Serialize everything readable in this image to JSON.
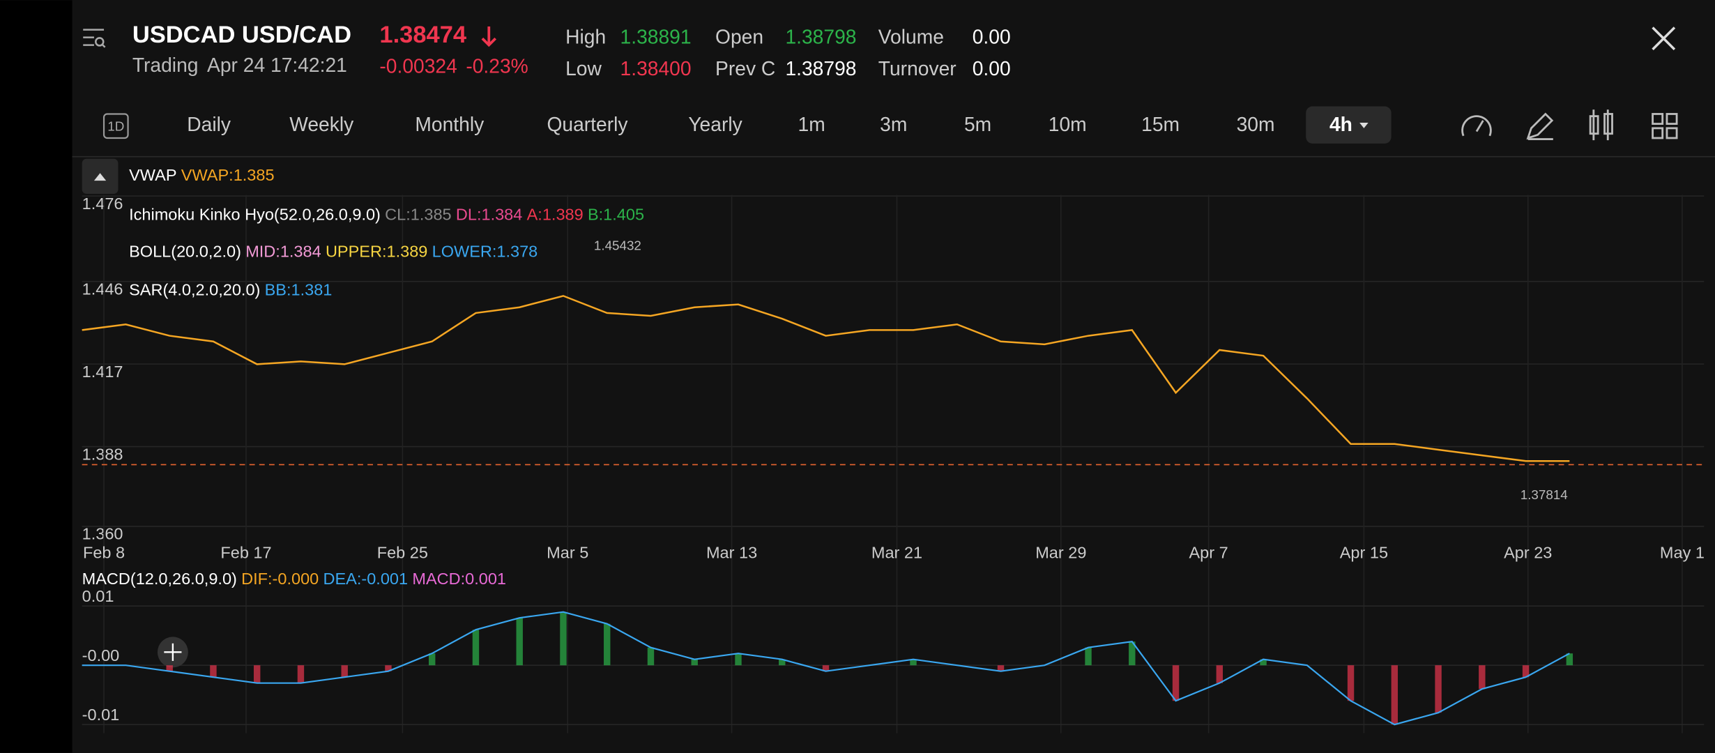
{
  "header": {
    "symbol": "USDCAD",
    "pair": "USD/CAD",
    "price": "1.38474",
    "status": "Trading",
    "time": "Apr 24 17:42:21",
    "change": "-0.00324",
    "change_pct": "-0.23%",
    "stats": [
      {
        "label": "High",
        "value": "1.38891"
      },
      {
        "label": "Open",
        "value": "1.38798"
      },
      {
        "label": "Volume",
        "value": "0.00"
      },
      {
        "label": "Low",
        "value": "1.38400"
      },
      {
        "label": "Prev C",
        "value": "1.38798"
      },
      {
        "label": "Turnover",
        "value": "0.00"
      }
    ]
  },
  "timeframe_icon": "1D",
  "timeframes": [
    "Daily",
    "Weekly",
    "Monthly",
    "Quarterly",
    "Yearly",
    "1m",
    "3m",
    "5m",
    "10m",
    "15m",
    "30m",
    "4h"
  ],
  "selected_timeframe": "4h",
  "indicators": {
    "vwap": {
      "name": "VWAP",
      "value": "VWAP:1.385"
    },
    "ichimoku": {
      "name": "Ichimoku Kinko Hyo(52.0,26.0,9.0)",
      "cl": "CL:1.385",
      "dl": "DL:1.384",
      "a": "A:1.389",
      "b": "B:1.405"
    },
    "boll": {
      "name": "BOLL(20.0,2.0)",
      "mid": "MID:1.384",
      "upper": "UPPER:1.389",
      "lower": "LOWER:1.378"
    },
    "sar": {
      "name": "SAR(4.0,2.0,20.0)",
      "bb": "BB:1.381"
    },
    "macd": {
      "name": "MACD(12.0,26.0,9.0)",
      "dif": "DIF:-0.000",
      "dea": "DEA:-0.001",
      "macd": "MACD:0.001"
    }
  },
  "main_chart": {
    "ylim": [
      1.36,
      1.476
    ],
    "yticks": [
      1.476,
      1.446,
      1.417,
      1.388,
      {
        "value": 1.36,
        "label": "1.360"
      }
    ],
    "xticks": [
      "Feb 8",
      "Feb 17",
      "Feb 25",
      "Mar 5",
      "Mar 13",
      "Mar 21",
      "Mar 29",
      "Apr 7",
      "Apr 15",
      "Apr 23",
      "May 1"
    ],
    "high_label": "1.45432",
    "low_label": "1.37814",
    "values": [
      1.432,
      1.434,
      1.43,
      1.428,
      1.42,
      1.421,
      1.42,
      1.424,
      1.428,
      1.438,
      1.44,
      1.444,
      1.438,
      1.437,
      1.44,
      1.441,
      1.436,
      1.43,
      1.432,
      1.432,
      1.434,
      1.428,
      1.427,
      1.43,
      1.432,
      1.41,
      1.425,
      1.423,
      1.408,
      1.392,
      1.392,
      1.39,
      1.388,
      1.386,
      1.386
    ]
  },
  "macd_chart": {
    "ylim": [
      -0.012,
      0.012
    ],
    "yticks": [
      0.01,
      {
        "value": 0,
        "label": "-0.00"
      },
      -0.01
    ],
    "values": [
      0,
      0,
      -0.001,
      -0.002,
      -0.003,
      -0.003,
      -0.002,
      -0.001,
      0.002,
      0.006,
      0.008,
      0.009,
      0.007,
      0.003,
      0.001,
      0.002,
      0.001,
      -0.001,
      0,
      0.001,
      0,
      -0.001,
      0,
      0.003,
      0.004,
      -0.006,
      -0.003,
      0.001,
      0,
      -0.006,
      -0.01,
      -0.008,
      -0.004,
      -0.002,
      0.002
    ]
  }
}
